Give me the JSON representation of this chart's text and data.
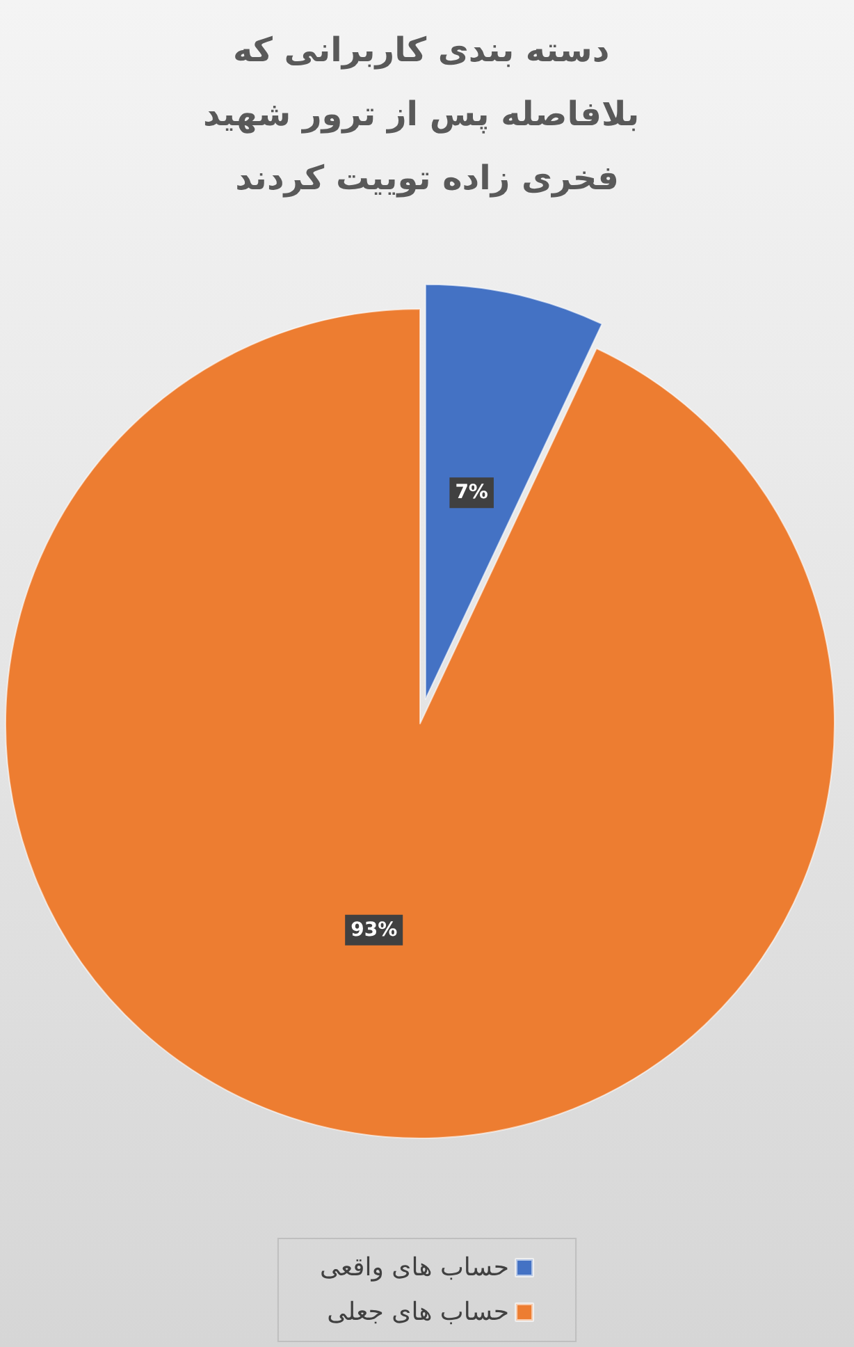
{
  "chart_data": {
    "type": "pie",
    "title": "دسته بندی کاربرانی که بلافاصله پس از ترور شهید فخری زاده توییت کردند",
    "categories": [
      "حساب های واقعی",
      "حساب های جعلی"
    ],
    "values": [
      7,
      93
    ],
    "colors": [
      "#4472c4",
      "#ed7d31"
    ],
    "value_labels": [
      "7%",
      "93%"
    ],
    "legend": "bottom"
  }
}
